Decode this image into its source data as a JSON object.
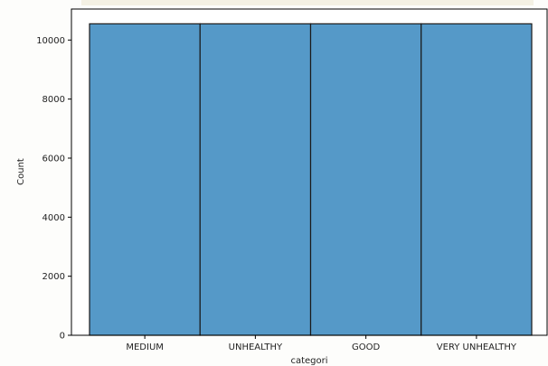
{
  "chart_data": {
    "type": "bar",
    "categories": [
      "MEDIUM",
      "UNHEALTHY",
      "GOOD",
      "VERY UNHEALTHY"
    ],
    "values": [
      10550,
      10550,
      10550,
      10550
    ],
    "xlabel": "categori",
    "ylabel": "Count",
    "ylim": [
      0,
      11050
    ],
    "yticks": [
      0,
      2000,
      4000,
      6000,
      8000,
      10000
    ],
    "grid": false,
    "legend": "none",
    "bar_color": "#5599c8",
    "edge_color": "#1a1a1a"
  }
}
